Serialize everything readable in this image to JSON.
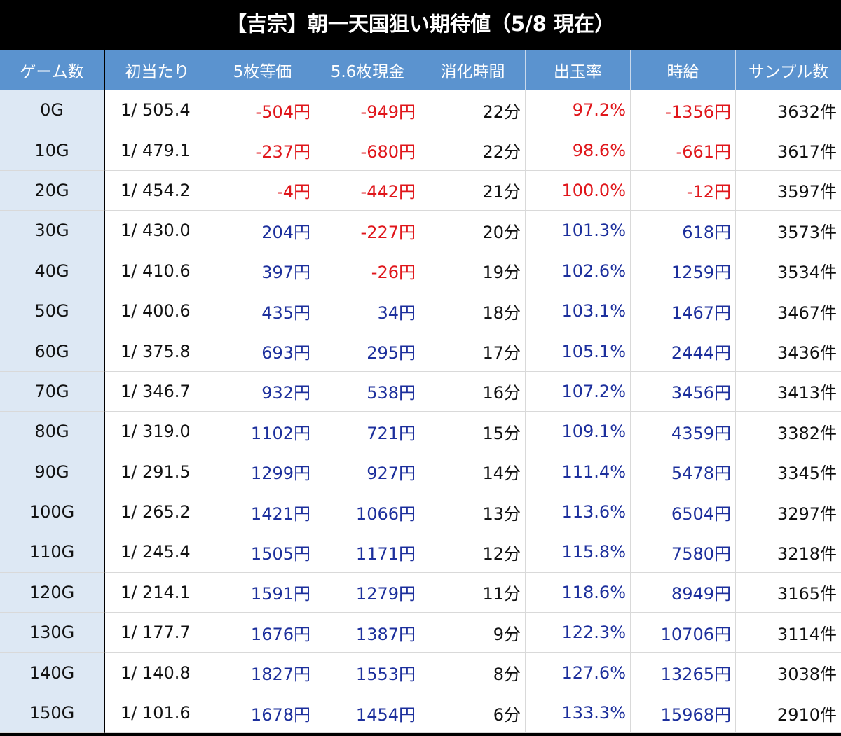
{
  "title": "【吉宗】朝一天国狙い期待値（5/8 現在）",
  "headers": [
    "ゲーム数",
    "初当たり",
    "5枚等価",
    "5.6枚現金",
    "消化時間",
    "出玉率",
    "時給",
    "サンプル数"
  ],
  "colors": {
    "negative": "#e0161b",
    "positive": "#1c2f9c",
    "header_bg": "#5b93cf",
    "first_col_bg": "#dde8f4"
  },
  "rows": [
    [
      "0G",
      "1/ 505.4",
      "-504円",
      "-949円",
      "22分",
      "97.2%",
      "-1356円",
      "3632件"
    ],
    [
      "10G",
      "1/ 479.1",
      "-237円",
      "-680円",
      "22分",
      "98.6%",
      "-661円",
      "3617件"
    ],
    [
      "20G",
      "1/ 454.2",
      "-4円",
      "-442円",
      "21分",
      "100.0%",
      "-12円",
      "3597件"
    ],
    [
      "30G",
      "1/ 430.0",
      "204円",
      "-227円",
      "20分",
      "101.3%",
      "618円",
      "3573件"
    ],
    [
      "40G",
      "1/ 410.6",
      "397円",
      "-26円",
      "19分",
      "102.6%",
      "1259円",
      "3534件"
    ],
    [
      "50G",
      "1/ 400.6",
      "435円",
      "34円",
      "18分",
      "103.1%",
      "1467円",
      "3467件"
    ],
    [
      "60G",
      "1/ 375.8",
      "693円",
      "295円",
      "17分",
      "105.1%",
      "2444円",
      "3436件"
    ],
    [
      "70G",
      "1/ 346.7",
      "932円",
      "538円",
      "16分",
      "107.2%",
      "3456円",
      "3413件"
    ],
    [
      "80G",
      "1/ 319.0",
      "1102円",
      "721円",
      "15分",
      "109.1%",
      "4359円",
      "3382件"
    ],
    [
      "90G",
      "1/ 291.5",
      "1299円",
      "927円",
      "14分",
      "111.4%",
      "5478円",
      "3345件"
    ],
    [
      "100G",
      "1/ 265.2",
      "1421円",
      "1066円",
      "13分",
      "113.6%",
      "6504円",
      "3297件"
    ],
    [
      "110G",
      "1/ 245.4",
      "1505円",
      "1171円",
      "12分",
      "115.8%",
      "7580円",
      "3218件"
    ],
    [
      "120G",
      "1/ 214.1",
      "1591円",
      "1279円",
      "11分",
      "118.6%",
      "8949円",
      "3165件"
    ],
    [
      "130G",
      "1/ 177.7",
      "1676円",
      "1387円",
      "9分",
      "122.3%",
      "10706円",
      "3114件"
    ],
    [
      "140G",
      "1/ 140.8",
      "1827円",
      "1553円",
      "8分",
      "127.6%",
      "13265円",
      "3038件"
    ],
    [
      "150G",
      "1/ 101.6",
      "1678円",
      "1454円",
      "6分",
      "133.3%",
      "15968円",
      "2910件"
    ]
  ]
}
